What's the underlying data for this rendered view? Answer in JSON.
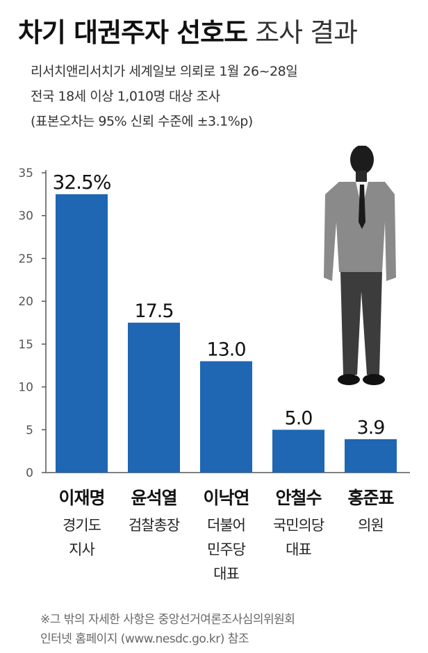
{
  "header": {
    "title_bold": "차기 대권주자 선호도",
    "title_light": "조사 결과",
    "subtitle_lines": [
      "리서치앤리서치가 세계일보 의뢰로 1월 26~28일",
      "전국 18세 이상 1,010명 대상 조사",
      "(표본오차는 95% 신뢰 수준에 ±3.1%p)"
    ]
  },
  "footnote": {
    "lines": [
      "※그 밖의 자세한 사항은 중앙선거여론조사심의위원회",
      "인터넷 홈페이지 (www.nesdc.go.kr) 참조"
    ]
  },
  "chart_data": {
    "type": "bar",
    "categories": [
      "이재명",
      "윤석열",
      "이낙연",
      "안철수",
      "홍준표"
    ],
    "category_sublabels": [
      [
        "경기도",
        "지사"
      ],
      [
        "검찰총장"
      ],
      [
        "더불어",
        "민주당",
        "대표"
      ],
      [
        "국민의당",
        "대표"
      ],
      [
        "의원"
      ]
    ],
    "values": [
      32.5,
      17.5,
      13.0,
      5.0,
      3.9
    ],
    "value_labels": [
      "32.5%",
      "17.5",
      "13.0",
      "5.0",
      "3.9"
    ],
    "y_ticks": [
      "0",
      "5",
      "10",
      "15",
      "20",
      "25",
      "30",
      "35"
    ],
    "ylim": [
      0,
      35
    ],
    "grid": false,
    "colors": {
      "bar": "#1f66b3",
      "axis": "#555555"
    }
  },
  "decoration": {
    "icon": "businessman-illustration"
  }
}
